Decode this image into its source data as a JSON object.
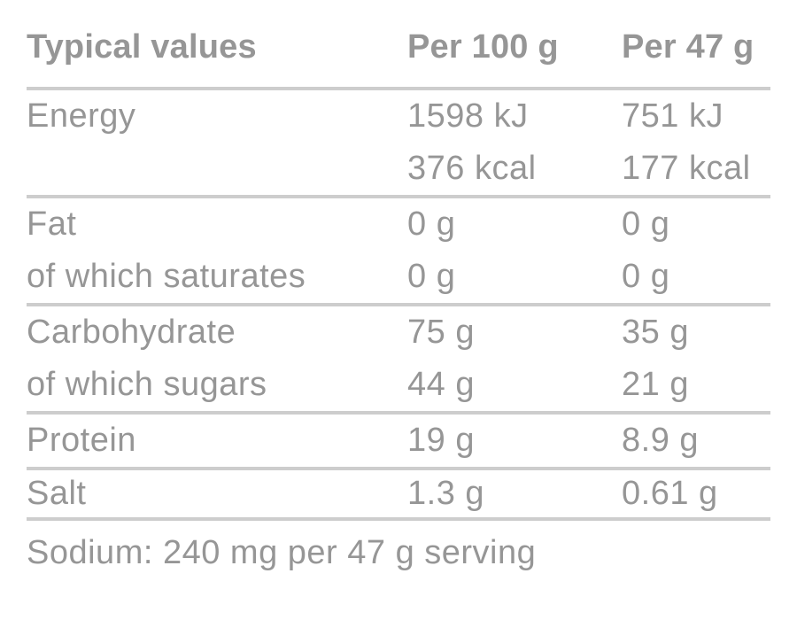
{
  "colors": {
    "background": "#ffffff",
    "text": "#969696",
    "rule": "#cdcdcd"
  },
  "table": {
    "header": {
      "label": "Typical values",
      "per100": "Per 100 g",
      "per47": "Per 47 g"
    },
    "rows": [
      {
        "label": "Energy",
        "per100": "1598 kJ",
        "per47": "751 kJ"
      },
      {
        "label": "",
        "per100": "376 kcal",
        "per47": "177 kcal"
      },
      {
        "label": "Fat",
        "per100": "0 g",
        "per47": "0 g"
      },
      {
        "label": "of which saturates",
        "per100": "0 g",
        "per47": "0 g"
      },
      {
        "label": "Carbohydrate",
        "per100": "75 g",
        "per47": "35 g"
      },
      {
        "label": "of which sugars",
        "per100": "44 g",
        "per47": "21 g"
      },
      {
        "label": "Protein",
        "per100": "19 g",
        "per47": "8.9 g"
      },
      {
        "label": "Salt",
        "per100": "1.3 g",
        "per47": "0.61 g"
      }
    ],
    "footnote": "Sodium: 240 mg per 47 g serving"
  }
}
